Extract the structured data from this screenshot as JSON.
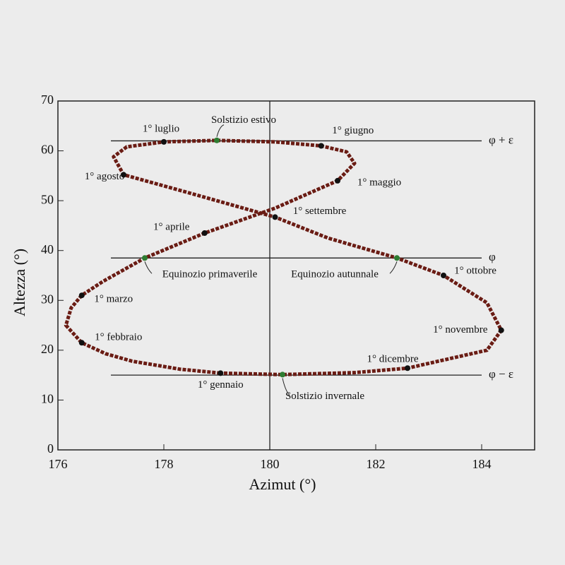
{
  "chart_data": {
    "type": "line",
    "xlabel": "Azimut (°)",
    "ylabel": "Altezza (°)",
    "xlim": [
      176,
      185
    ],
    "ylim": [
      0,
      70
    ],
    "xticks": [
      176,
      178,
      180,
      182,
      184
    ],
    "yticks": [
      0,
      10,
      20,
      30,
      40,
      50,
      60,
      70
    ],
    "series": [
      {
        "color": "#6a1c14",
        "x": [
          179.07,
          178.3,
          177.4,
          176.9,
          176.45,
          176.15,
          176.25,
          176.45,
          176.85,
          177.64,
          178.77,
          180.1,
          181.28,
          181.6,
          181.45,
          180.97,
          180.1,
          179.0,
          178.0,
          177.3,
          177.05,
          177.24,
          178.5,
          180.1,
          181.1,
          182.4,
          183.28,
          184.1,
          184.37,
          184.1,
          182.6,
          181.6,
          180.24
        ],
        "values": [
          15.4,
          16.2,
          17.8,
          19.3,
          21.5,
          25,
          28.5,
          31,
          33.8,
          38.5,
          43.5,
          48.5,
          54,
          57.5,
          59.8,
          61,
          61.8,
          62.1,
          61.8,
          60.8,
          58.8,
          55.2,
          51.5,
          46.7,
          42.5,
          38.5,
          35,
          29.5,
          24,
          20,
          16.4,
          15.5,
          15.1
        ]
      }
    ],
    "vline": 180,
    "reference_lines": [
      {
        "label": "φ + ε",
        "y": 62,
        "xmin": 177,
        "xmax": 184
      },
      {
        "label": "φ",
        "y": 38.5,
        "xmin": 177,
        "xmax": 184
      },
      {
        "label": "φ − ε",
        "y": 15,
        "xmin": 177,
        "xmax": 184
      }
    ],
    "annotations": [
      {
        "text": "1° luglio",
        "x": 178.0,
        "y": 61.8,
        "color": "#111111"
      },
      {
        "text": "Solstizio estivo",
        "x": 179.0,
        "y": 62.1,
        "color": "#2e7d32"
      },
      {
        "text": "1° giugno",
        "x": 180.97,
        "y": 61,
        "color": "#111111"
      },
      {
        "text": "1° agosto",
        "x": 177.24,
        "y": 55.2,
        "color": "#111111"
      },
      {
        "text": "1° maggio",
        "x": 181.28,
        "y": 54,
        "color": "#111111"
      },
      {
        "text": "1° settembre",
        "x": 180.1,
        "y": 46.7,
        "color": "#111111"
      },
      {
        "text": "1° aprile",
        "x": 178.77,
        "y": 43.5,
        "color": "#111111"
      },
      {
        "text": "Equinozio primaverile",
        "x": 177.64,
        "y": 38.5,
        "color": "#2e7d32"
      },
      {
        "text": "Equinozio autunnale",
        "x": 182.4,
        "y": 38.5,
        "color": "#2e7d32"
      },
      {
        "text": "1° ottobre",
        "x": 183.28,
        "y": 35,
        "color": "#111111"
      },
      {
        "text": "1° marzo",
        "x": 176.45,
        "y": 31,
        "color": "#111111"
      },
      {
        "text": "1° novembre",
        "x": 184.37,
        "y": 24,
        "color": "#111111"
      },
      {
        "text": "1° febbraio",
        "x": 176.45,
        "y": 21.5,
        "color": "#111111"
      },
      {
        "text": "1° dicembre",
        "x": 182.6,
        "y": 16.4,
        "color": "#111111"
      },
      {
        "text": "1° gennaio",
        "x": 179.07,
        "y": 15.4,
        "color": "#111111"
      },
      {
        "text": "Solstizio invernale",
        "x": 180.24,
        "y": 15.1,
        "color": "#2e7d32"
      }
    ]
  }
}
